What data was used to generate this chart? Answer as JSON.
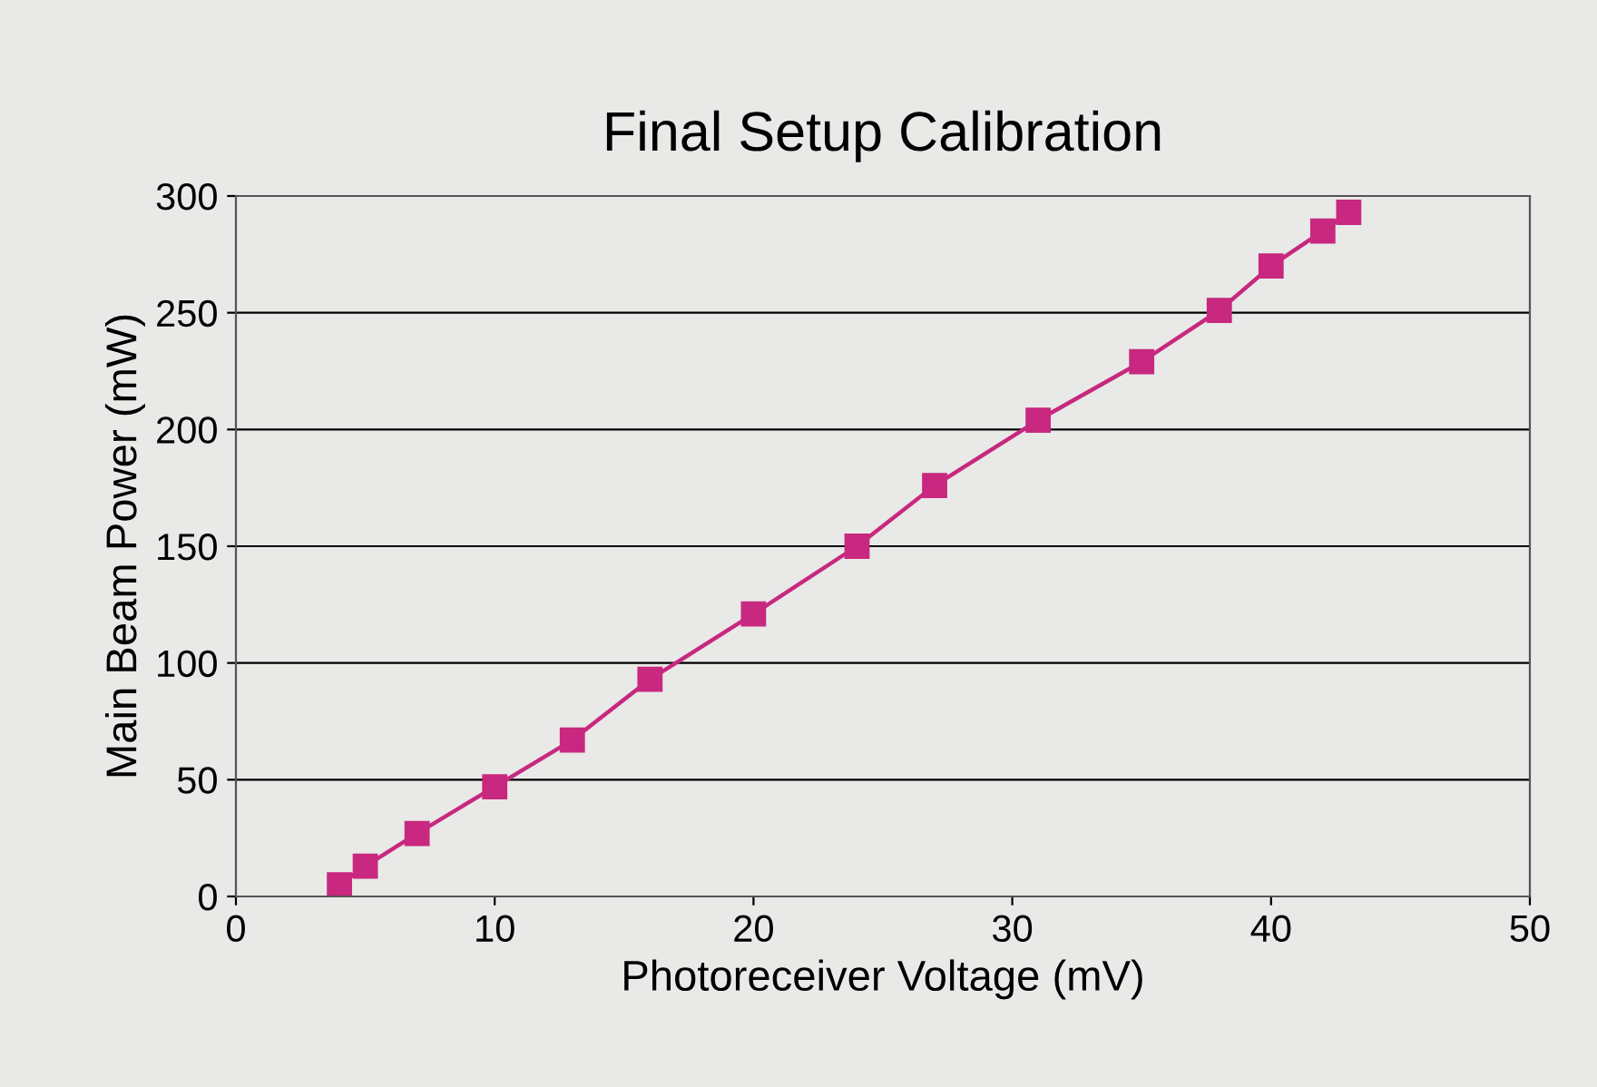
{
  "chart_data": {
    "type": "line",
    "title": "Final Setup Calibration",
    "xlabel": "Photoreceiver Voltage (mV)",
    "ylabel": "Main Beam Power (mW)",
    "x": [
      4,
      5,
      7,
      10,
      13,
      16,
      20,
      24,
      27,
      31,
      35,
      38,
      40,
      42,
      43
    ],
    "series": [
      {
        "color": "#c8287f",
        "values": [
          5,
          13,
          27,
          47,
          67,
          93,
          121,
          150,
          176,
          204,
          229,
          251,
          270,
          285,
          293
        ]
      }
    ],
    "xlim": [
      0,
      50
    ],
    "xticks": [
      0,
      10,
      20,
      30,
      40,
      50
    ],
    "ylim": [
      0,
      300
    ],
    "yticks": [
      0,
      50,
      100,
      150,
      200,
      250,
      300
    ],
    "grid": "y",
    "marker": "square",
    "line_style": "solid",
    "legend": false
  }
}
